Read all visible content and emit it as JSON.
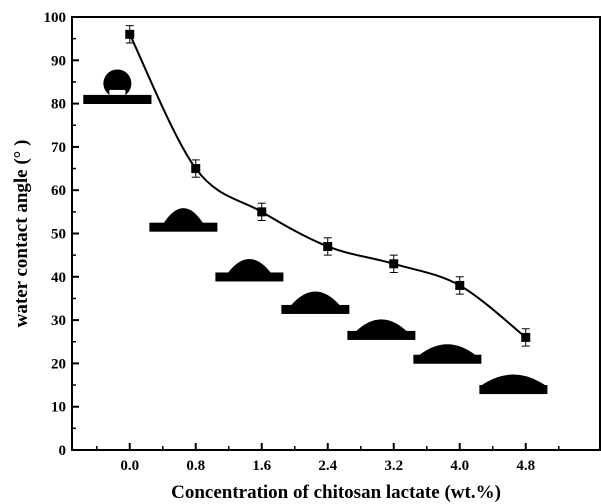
{
  "chart_data": {
    "type": "scatter",
    "title": "",
    "xlabel": "Concentration of chitosan lactate (wt.%)",
    "ylabel": "water contact angle (° )",
    "x": [
      "0.0",
      "0.8",
      "1.6",
      "2.4",
      "3.2",
      "4.0",
      "4.8"
    ],
    "xlim": [
      -0.7,
      5.7
    ],
    "ylim": [
      0,
      100
    ],
    "yticks": [
      "0",
      "10",
      "20",
      "30",
      "40",
      "50",
      "60",
      "70",
      "80",
      "90",
      "100"
    ],
    "series": [
      {
        "values": [
          96,
          65,
          55,
          47,
          43,
          38,
          26
        ],
        "error": [
          2,
          2,
          2,
          2,
          2,
          2,
          2
        ],
        "marker": "square",
        "color": "#000000"
      }
    ],
    "fit_curve": "smooth",
    "grid": false,
    "legend": "none",
    "droplet_insets": [
      {
        "x": -0.15,
        "y": 82
      },
      {
        "x": 0.65,
        "y": 52.5
      },
      {
        "x": 1.45,
        "y": 41
      },
      {
        "x": 2.25,
        "y": 33.5
      },
      {
        "x": 3.05,
        "y": 27.5
      },
      {
        "x": 3.85,
        "y": 22
      },
      {
        "x": 4.65,
        "y": 15
      }
    ]
  }
}
